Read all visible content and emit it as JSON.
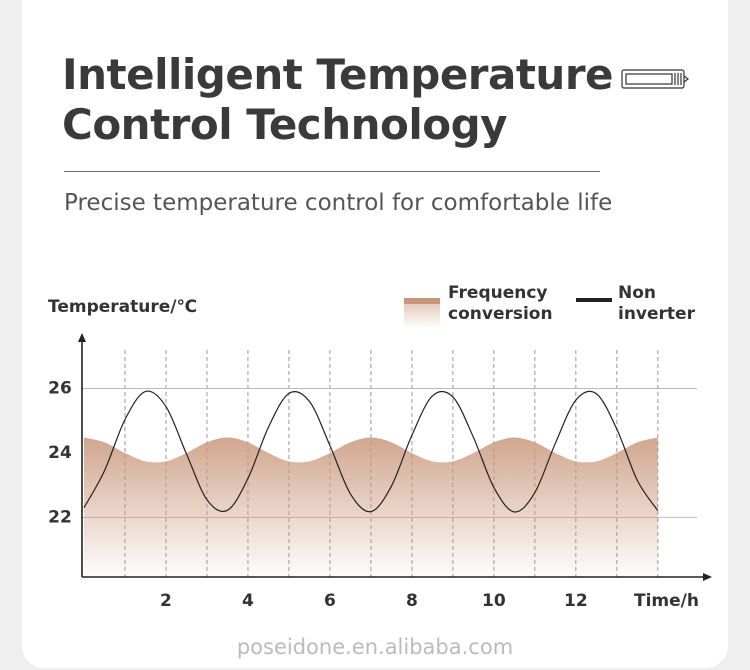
{
  "header": {
    "title_lines": [
      "Intelligent Temperature",
      "Control Technology"
    ],
    "subtitle": "Precise temperature control for comfortable life"
  },
  "chart_data": {
    "type": "line",
    "y_label": "Temperature/℃",
    "x_label": "Time/h",
    "x": [
      0,
      0.5,
      1,
      1.5,
      2,
      2.5,
      3,
      3.5,
      4,
      4.5,
      5,
      5.5,
      6,
      6.5,
      7,
      7.5,
      8,
      8.5,
      9,
      9.5,
      10,
      10.5,
      11,
      11.5,
      12,
      12.5,
      13,
      13.5,
      14
    ],
    "series": [
      {
        "name": "Frequency conversion",
        "color": "#c9967a",
        "fill": "area",
        "values": [
          24.48,
          24.33,
          24.0,
          23.74,
          23.74,
          24.0,
          24.33,
          24.48,
          24.33,
          24.0,
          23.74,
          23.74,
          24.0,
          24.33,
          24.48,
          24.33,
          24.0,
          23.74,
          23.74,
          24.0,
          24.33,
          24.48,
          24.33,
          24.0,
          23.74,
          23.74,
          24.0,
          24.33,
          24.48
        ]
      },
      {
        "name": "Non inverter",
        "color": "#222222",
        "fill": "none",
        "values": [
          22.3,
          23.45,
          25.04,
          25.91,
          25.44,
          23.97,
          22.55,
          22.22,
          23.21,
          24.8,
          25.85,
          25.6,
          24.23,
          22.73,
          22.18,
          22.97,
          24.55,
          25.77,
          25.74,
          24.49,
          22.93,
          22.17,
          22.77,
          24.3,
          25.64,
          25.84,
          24.74,
          23.15,
          22.21
        ]
      }
    ],
    "xlim": [
      0,
      15.2
    ],
    "ylim": [
      20.15,
      27.6
    ],
    "xticks": [
      2,
      4,
      6,
      8,
      10,
      12
    ],
    "yticks": [
      22,
      24,
      26
    ],
    "x_grid": [
      1,
      2,
      3,
      4,
      5,
      6,
      7,
      8,
      9,
      10,
      11,
      12,
      13,
      14
    ],
    "y_grid": [
      22,
      26
    ]
  },
  "watermark": "poseidone.en.alibaba.com"
}
